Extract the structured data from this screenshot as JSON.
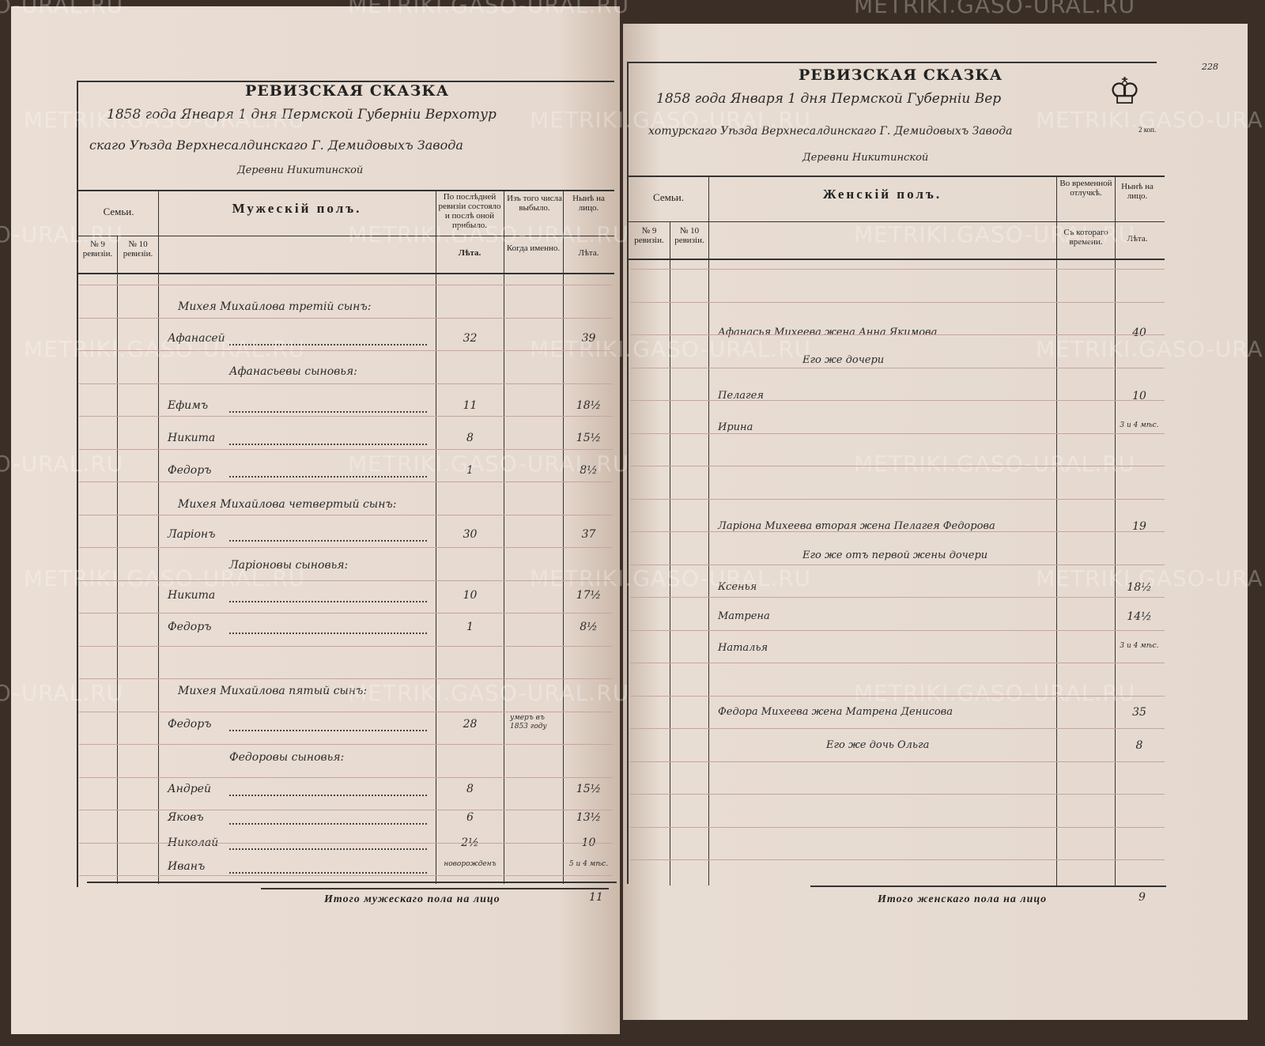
{
  "watermark": "METRIKI.GASO-URAL.RU",
  "left_page": {
    "title": "РЕВИЗСКАЯ СКАЗКА",
    "header_line1": "1858 года Января 1 дня Пермской Губерніи Верхотур",
    "header_line2": "скаго Уѣзда Верхнесалдинскаго Г. Демидовыхъ Завода",
    "header_line3": "Деревни Никитинской",
    "col_families": "Семьи.",
    "col_rev9": "№ 9 ревизіи.",
    "col_rev10": "№ 10 ревизіи.",
    "col_sex": "Мужескій полъ.",
    "col_last_rev": "По послѣдней ревизіи состояло и послѣ оной прибыло.",
    "col_left": "Изъ того числа выбыло.",
    "col_now": "Нынѣ на лицо.",
    "sub_years": "Лѣта.",
    "sub_when": "Когда именно.",
    "sub_years2": "Лѣта.",
    "rows": [
      {
        "name": "Михея Михайлова третій сынъ:",
        "heading": true
      },
      {
        "name": "Афанасей",
        "age": "32",
        "left": "",
        "now": "39"
      },
      {
        "name": "Афанасьевы сыновья:",
        "heading": true
      },
      {
        "name": "Ефимъ",
        "age": "11",
        "left": "",
        "now": "18½"
      },
      {
        "name": "Никита",
        "age": "8",
        "left": "",
        "now": "15½"
      },
      {
        "name": "Федоръ",
        "age": "1",
        "left": "",
        "now": "8½"
      },
      {
        "name": "Михея Михайлова четвертый сынъ:",
        "heading": true
      },
      {
        "name": "Ларіонъ",
        "age": "30",
        "left": "",
        "now": "37"
      },
      {
        "name": "Ларіоновы сыновья:",
        "heading": true
      },
      {
        "name": "Никита",
        "age": "10",
        "left": "",
        "now": "17½"
      },
      {
        "name": "Федоръ",
        "age": "1",
        "left": "",
        "now": "8½"
      },
      {
        "name": "Михея Михайлова пятый сынъ:",
        "heading": true
      },
      {
        "name": "Федоръ",
        "age": "28",
        "left": "умеръ въ 1853 году",
        "now": ""
      },
      {
        "name": "Федоровы сыновья:",
        "heading": true
      },
      {
        "name": "Андрей",
        "age": "8",
        "left": "",
        "now": "15½"
      },
      {
        "name": "Яковъ",
        "age": "6",
        "left": "",
        "now": "13½"
      },
      {
        "name": "Николай",
        "age": "2½",
        "left": "",
        "now": "10"
      },
      {
        "name": "Иванъ",
        "age": "новорожденъ",
        "left": "",
        "now": "5 и 4 мѣс."
      }
    ],
    "total_label": "Итого мужескаго пола на лицо",
    "total_value": "11"
  },
  "right_page": {
    "page_number": "228",
    "title": "РЕВИЗСКАЯ СКАЗКА",
    "header_line1": "1858 года Января 1 дня Пермской Губерніи Вер",
    "header_line2": "хотурскаго Уѣзда Верхнесалдинскаго Г. Демидовыхъ Завода",
    "header_line3": "Деревни Никитинской",
    "stamp_value": "2 коп.",
    "col_families": "Семьи.",
    "col_rev9": "№ 9 ревизіи.",
    "col_rev10": "№ 10 ревизіи.",
    "col_sex": "Женскій полъ.",
    "col_absent": "Во временной отлучкѣ.",
    "col_now": "Нынѣ на лицо.",
    "sub_since": "Съ котораго времени.",
    "sub_years": "Лѣта.",
    "rows": [
      {
        "name": "Афанасья Михеева жена Анна Якимова",
        "now": "40"
      },
      {
        "name": "Его же дочери",
        "heading": true
      },
      {
        "name": "Пелагея",
        "now": "10"
      },
      {
        "name": "Ирина",
        "now": "3 и 4 мѣс."
      },
      {
        "name": "Ларіона Михеева вторая жена Пелагея Федорова",
        "now": "19"
      },
      {
        "name": "Его же отъ первой жены дочери",
        "heading": true
      },
      {
        "name": "Ксенья",
        "now": "18½"
      },
      {
        "name": "Матрена",
        "now": "14½"
      },
      {
        "name": "Наталья",
        "now": "3 и 4 мѣс."
      },
      {
        "name": "Федора Михеева жена Матрена Денисова",
        "now": "35"
      },
      {
        "name": "Его же дочь Ольга",
        "now": "8",
        "heading": true
      }
    ],
    "total_label": "Итого женскаго пола на лицо",
    "total_value": "9"
  }
}
